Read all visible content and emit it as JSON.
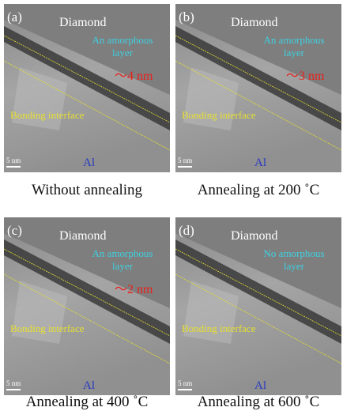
{
  "panels": [
    {
      "label": "(a)",
      "top_material": "Diamond",
      "layer_text": [
        "An amorphous",
        "layer"
      ],
      "thickness": "～4 nm",
      "interface": "Bonding interface",
      "bottom_material": "Al",
      "scale": "5 nm",
      "caption": "Without annealing"
    },
    {
      "label": "(b)",
      "top_material": "Diamond",
      "layer_text": [
        "An amorphous",
        "layer"
      ],
      "thickness": "～3 nm",
      "interface": "Bonding interface",
      "bottom_material": "Al",
      "scale": "5 nm",
      "caption": "Annealing at 200 ˚C"
    },
    {
      "label": "(c)",
      "top_material": "Diamond",
      "layer_text": [
        "An amorphous",
        "layer"
      ],
      "thickness": "～2 nm",
      "interface": "Bonding interface",
      "bottom_material": "Al",
      "scale": "5 nm",
      "caption": "Annealing at 400 ˚C"
    },
    {
      "label": "(d)",
      "top_material": "Diamond",
      "layer_text": [
        "No amorphous",
        "layer"
      ],
      "interface": "Bonding interface",
      "bottom_material": "Al",
      "scale": "5 nm",
      "caption": "Annealing at 600 ˚C"
    }
  ]
}
